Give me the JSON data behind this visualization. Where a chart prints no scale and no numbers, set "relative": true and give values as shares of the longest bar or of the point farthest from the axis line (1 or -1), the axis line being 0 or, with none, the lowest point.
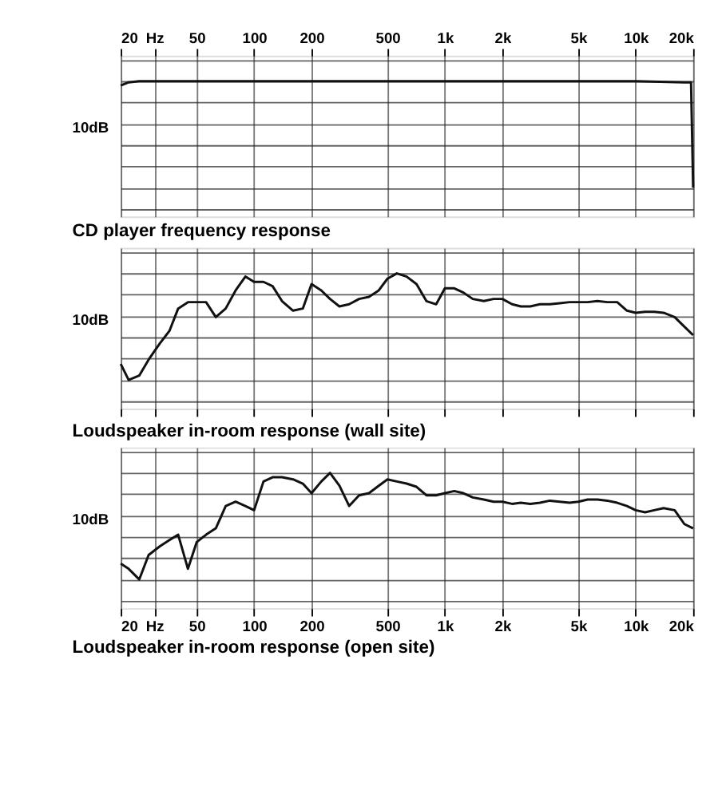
{
  "chart_data": [
    {
      "type": "line",
      "title": "CD player frequency response",
      "annotations": [
        "10dB"
      ],
      "relative": true,
      "log": "x",
      "grid": true,
      "xlim": [
        20,
        20000
      ],
      "xticks": [
        20,
        {
          "value": 30,
          "label": "Hz"
        },
        50,
        100,
        200,
        500,
        {
          "value": 1000,
          "label": "1k"
        },
        {
          "value": 2000,
          "label": "2k"
        },
        {
          "value": 5000,
          "label": "5k"
        },
        {
          "value": 10000,
          "label": "10k"
        },
        {
          "value": 20000,
          "label": "20k"
        }
      ],
      "x": [
        20,
        22,
        25,
        50,
        100,
        1000,
        10000,
        18000,
        19500,
        20000
      ],
      "series": [
        {
          "color": "#111111",
          "values": [
            0.96,
            0.99,
            1,
            1,
            1,
            1,
            1,
            0.99,
            0.99,
            0
          ]
        }
      ]
    },
    {
      "type": "line",
      "title": "Loudspeaker in-room response (wall site)",
      "annotations": [
        "10dB"
      ],
      "relative": true,
      "log": "x",
      "grid": true,
      "tick_labels": false,
      "xlim": [
        20,
        20000
      ],
      "xticks": [
        20,
        30,
        50,
        100,
        200,
        500,
        1000,
        2000,
        5000,
        10000,
        20000
      ],
      "x": [
        20,
        22,
        25,
        28,
        32,
        36,
        40,
        45,
        50,
        56,
        63,
        71,
        80,
        90,
        100,
        112,
        125,
        140,
        160,
        180,
        200,
        225,
        250,
        280,
        315,
        355,
        400,
        450,
        500,
        560,
        630,
        710,
        800,
        900,
        1000,
        1120,
        1250,
        1400,
        1600,
        1800,
        2000,
        2250,
        2500,
        2800,
        3150,
        3550,
        4000,
        4500,
        5000,
        5600,
        6300,
        7100,
        8000,
        9000,
        10000,
        11200,
        12500,
        14000,
        16000,
        18000,
        20000
      ],
      "series": [
        {
          "color": "#111111",
          "values": [
            0.15,
            0,
            0.04,
            0.19,
            0.34,
            0.46,
            0.67,
            0.73,
            0.73,
            0.73,
            0.59,
            0.67,
            0.84,
            0.97,
            0.92,
            0.92,
            0.88,
            0.74,
            0.65,
            0.67,
            0.9,
            0.84,
            0.76,
            0.69,
            0.71,
            0.76,
            0.78,
            0.84,
            0.95,
            1,
            0.97,
            0.9,
            0.74,
            0.71,
            0.86,
            0.86,
            0.82,
            0.76,
            0.74,
            0.76,
            0.76,
            0.71,
            0.69,
            0.69,
            0.71,
            0.71,
            0.72,
            0.73,
            0.73,
            0.73,
            0.74,
            0.73,
            0.73,
            0.65,
            0.63,
            0.64,
            0.64,
            0.63,
            0.59,
            0.5,
            0.42
          ]
        }
      ]
    },
    {
      "type": "line",
      "title": "Loudspeaker in-room response (open site)",
      "annotations": [
        "10dB"
      ],
      "relative": true,
      "log": "x",
      "grid": true,
      "xlim": [
        20,
        20000
      ],
      "xticks": [
        20,
        {
          "value": 30,
          "label": "Hz"
        },
        50,
        100,
        200,
        500,
        {
          "value": 1000,
          "label": "1k"
        },
        {
          "value": 2000,
          "label": "2k"
        },
        {
          "value": 5000,
          "label": "5k"
        },
        {
          "value": 10000,
          "label": "10k"
        },
        {
          "value": 20000,
          "label": "20k"
        }
      ],
      "x": [
        20,
        22,
        25,
        28,
        32,
        36,
        40,
        45,
        50,
        56,
        63,
        71,
        80,
        90,
        100,
        112,
        125,
        140,
        160,
        180,
        200,
        225,
        250,
        280,
        315,
        355,
        400,
        450,
        500,
        560,
        630,
        710,
        800,
        900,
        1000,
        1120,
        1250,
        1400,
        1600,
        1800,
        2000,
        2250,
        2500,
        2800,
        3150,
        3550,
        4000,
        4500,
        5000,
        5600,
        6300,
        7100,
        8000,
        9000,
        10000,
        11200,
        12500,
        14000,
        16000,
        18000,
        20000
      ],
      "series": [
        {
          "color": "#111111",
          "values": [
            0.15,
            0.1,
            0,
            0.23,
            0.31,
            0.37,
            0.42,
            0.1,
            0.35,
            0.42,
            0.48,
            0.69,
            0.73,
            0.69,
            0.65,
            0.92,
            0.96,
            0.96,
            0.94,
            0.9,
            0.81,
            0.92,
            1,
            0.88,
            0.69,
            0.79,
            0.81,
            0.88,
            0.94,
            0.92,
            0.9,
            0.87,
            0.79,
            0.79,
            0.81,
            0.83,
            0.81,
            0.77,
            0.75,
            0.73,
            0.73,
            0.71,
            0.72,
            0.71,
            0.72,
            0.74,
            0.73,
            0.72,
            0.73,
            0.75,
            0.75,
            0.74,
            0.72,
            0.69,
            0.65,
            0.63,
            0.65,
            0.67,
            0.65,
            0.52,
            0.48
          ]
        }
      ]
    }
  ]
}
